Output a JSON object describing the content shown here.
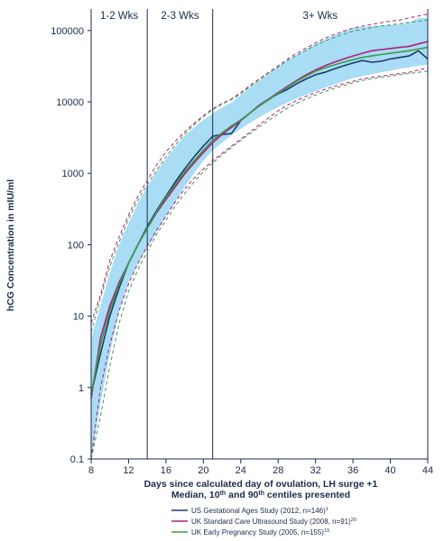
{
  "chart_data": {
    "type": "line",
    "title": "",
    "xlabel": "Days since calculated day of ovulation, LH surge +1",
    "xlabel_line2": "Median, 10",
    "xlabel_sup1": "th",
    "xlabel_mid": " and 90",
    "xlabel_sup2": "th",
    "xlabel_end": " centiles presented",
    "ylabel": "hCG Concentration in mIU/ml",
    "y_scale": "log",
    "xlim": [
      8,
      44
    ],
    "ylim": [
      0.1,
      200000
    ],
    "x_ticks": [
      8,
      12,
      16,
      20,
      24,
      28,
      32,
      36,
      40,
      44
    ],
    "y_ticks": [
      0.1,
      1,
      10,
      100,
      1000,
      10000,
      100000
    ],
    "y_tick_labels": [
      "0.1",
      "1",
      "10",
      "100",
      "1000",
      "10000",
      "100000"
    ],
    "phases": [
      {
        "label": "1-2 Wks",
        "x_start": 8,
        "x_end": 14
      },
      {
        "label": "2-3 Wks",
        "x_start": 14,
        "x_end": 21
      },
      {
        "label": "3+ Wks",
        "x_start": 21,
        "x_end": 44
      }
    ],
    "phase_dividers": [
      14,
      21
    ],
    "band": {
      "color": "#a9dcf5",
      "x": [
        8,
        9,
        10,
        11,
        12,
        13,
        14,
        15,
        16,
        17,
        18,
        19,
        20,
        21,
        22,
        23,
        24,
        25,
        26,
        27,
        28,
        29,
        30,
        31,
        32,
        33,
        34,
        35,
        36,
        37,
        38,
        39,
        40,
        41,
        42,
        43,
        44
      ],
      "lower": [
        0.1,
        0.6,
        3,
        12,
        30,
        55,
        90,
        150,
        250,
        400,
        650,
        1000,
        1500,
        2100,
        2700,
        3400,
        4200,
        5100,
        6100,
        7200,
        8500,
        9800,
        11200,
        12600,
        14200,
        15800,
        17500,
        19500,
        21500,
        23000,
        24500,
        26000,
        27500,
        29000,
        30500,
        32000,
        33000
      ],
      "upper": [
        5,
        14,
        40,
        100,
        200,
        380,
        650,
        1050,
        1600,
        2350,
        3300,
        4400,
        5600,
        6900,
        8300,
        9800,
        12500,
        16000,
        20000,
        25000,
        31000,
        38000,
        46000,
        55000,
        65000,
        75000,
        86000,
        97000,
        108000,
        112000,
        116000,
        118000,
        120000,
        122000,
        128000,
        150000,
        150000
      ]
    },
    "x": [
      8,
      9,
      10,
      11,
      12,
      13,
      14,
      15,
      16,
      17,
      18,
      19,
      20,
      21,
      22,
      23,
      24,
      25,
      26,
      27,
      28,
      29,
      30,
      31,
      32,
      33,
      34,
      35,
      36,
      37,
      38,
      39,
      40,
      41,
      42,
      43,
      44
    ],
    "series": [
      {
        "name": "US Gestational Ages Study (2012, n=146)",
        "ref": "1",
        "color": "#1f3a6b",
        "median": [
          0.8,
          3,
          10,
          25,
          55,
          100,
          180,
          300,
          480,
          760,
          1150,
          1700,
          2400,
          3300,
          3500,
          3600,
          5500,
          7000,
          9000,
          11000,
          13000,
          15000,
          18000,
          21000,
          24000,
          26000,
          29000,
          32000,
          35000,
          38000,
          36000,
          37000,
          40000,
          42000,
          44000,
          52000,
          40000
        ]
      },
      {
        "name": "UK Standard Care Ultrasound Study (2008, n=91)",
        "ref": "20",
        "color": "#b0207a",
        "median": [
          0.7,
          5,
          14,
          30,
          55,
          100,
          170,
          280,
          430,
          650,
          980,
          1400,
          1950,
          2700,
          3500,
          4400,
          5500,
          7000,
          9000,
          11000,
          13500,
          16500,
          20000,
          24000,
          28000,
          32000,
          36000,
          40000,
          44000,
          48000,
          52000,
          54000,
          56000,
          58000,
          60000,
          65000,
          70000
        ],
        "p10": [
          0.1,
          1,
          4,
          12,
          28,
          55,
          95,
          160,
          250,
          400,
          600,
          850,
          1150,
          1500,
          1900,
          2400,
          3000,
          3800,
          4800,
          6000,
          7500,
          9000,
          10500,
          12000,
          13500,
          15000,
          16500,
          18000,
          19500,
          21000,
          22000,
          23000,
          24000,
          25000,
          26000,
          28000,
          30000
        ],
        "p90": [
          8,
          20,
          60,
          130,
          260,
          480,
          800,
          1300,
          2000,
          2800,
          3800,
          5000,
          6400,
          8000,
          9500,
          11000,
          13500,
          17000,
          21000,
          26000,
          32000,
          40000,
          48000,
          57000,
          67000,
          78000,
          88000,
          98000,
          108000,
          115000,
          122000,
          128000,
          135000,
          140000,
          150000,
          160000,
          170000
        ]
      },
      {
        "name": "UK Early Pregnancy Study (2005, n=155)",
        "ref": "19",
        "color": "#3d9a4a",
        "median": [
          0.8,
          4,
          12,
          28,
          55,
          100,
          170,
          290,
          460,
          700,
          1050,
          1500,
          2100,
          2900,
          3700,
          4600,
          5600,
          7000,
          8800,
          10800,
          13200,
          16000,
          19500,
          23000,
          27000,
          30000,
          33000,
          36000,
          39000,
          42000,
          44000,
          46000,
          48000,
          50000,
          52000,
          55000,
          58000
        ],
        "p10": [
          0.1,
          0.4,
          2,
          8,
          22,
          45,
          80,
          140,
          220,
          350,
          520,
          760,
          1050,
          1400,
          1800,
          2300,
          2900,
          3600,
          4500,
          5500,
          6800,
          8200,
          9600,
          11000,
          12500,
          14000,
          15500,
          17000,
          18500,
          20000,
          21000,
          22000,
          23000,
          24000,
          25000,
          26000,
          27000
        ],
        "p90": [
          6,
          18,
          50,
          110,
          230,
          420,
          700,
          1100,
          1700,
          2500,
          3500,
          4800,
          6200,
          7800,
          9300,
          10800,
          13000,
          16500,
          20500,
          25500,
          31000,
          38000,
          45000,
          53000,
          62000,
          71000,
          80000,
          89000,
          98000,
          104000,
          110000,
          115000,
          120000,
          125000,
          130000,
          135000,
          140000
        ]
      }
    ],
    "legend_placement": "bottom",
    "grid": false
  }
}
